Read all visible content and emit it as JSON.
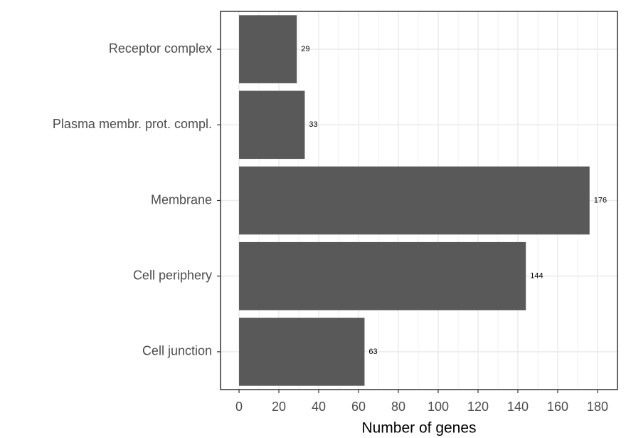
{
  "chart_data": {
    "type": "barh",
    "x_label": "Number of genes",
    "categories": [
      "Receptor complex",
      "Plasma membr. prot. compl.",
      "Membrane",
      "Cell periphery",
      "Cell junction"
    ],
    "values": [
      29,
      33,
      176,
      144,
      63
    ],
    "color": "#595959",
    "xlim": [
      -9.3,
      190
    ],
    "xticks": [
      0,
      20,
      40,
      60,
      80,
      100,
      120,
      140,
      160,
      180
    ],
    "grid": true,
    "minor_grid": true,
    "show_value_labels": true
  }
}
